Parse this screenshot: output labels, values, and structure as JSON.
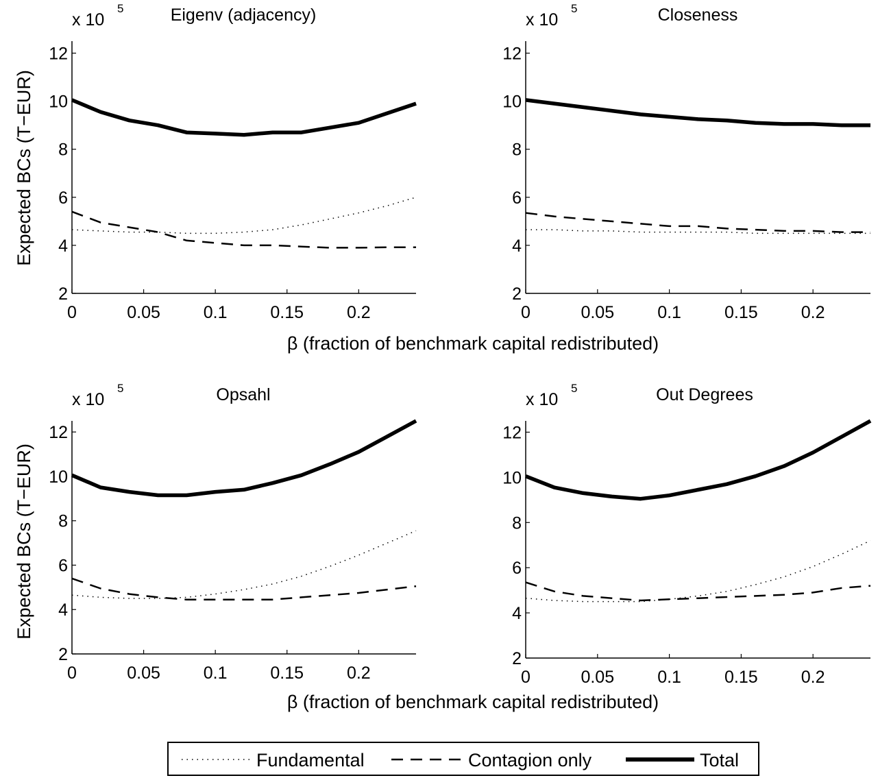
{
  "figure": {
    "ylabel": "Expected BCs (T−EUR)",
    "xlabel": "β (fraction of benchmark capital redistributed)",
    "exponent_base": "x 10",
    "exponent_power": "5"
  },
  "legend": {
    "fundamental": "Fundamental",
    "contagion": "Contagion only",
    "total": "Total"
  },
  "chart_data": [
    {
      "type": "line",
      "title": "Eigenv (adjacency)",
      "xlabel": "",
      "ylabel": "Expected BCs (T−EUR)",
      "xlim": [
        0,
        0.24
      ],
      "ylim": [
        2,
        12.5
      ],
      "xticks": [
        "0",
        "0.05",
        "0.1",
        "0.15",
        "0.2"
      ],
      "yticks": [
        "2",
        "4",
        "6",
        "8",
        "10",
        "12"
      ],
      "y_scale": "x 10^5",
      "x": [
        0,
        0.02,
        0.04,
        0.06,
        0.08,
        0.1,
        0.12,
        0.14,
        0.16,
        0.18,
        0.2,
        0.22,
        0.24
      ],
      "series": [
        {
          "name": "Fundamental",
          "values": [
            4.65,
            4.6,
            4.55,
            4.55,
            4.5,
            4.5,
            4.55,
            4.65,
            4.85,
            5.1,
            5.35,
            5.65,
            6.0
          ]
        },
        {
          "name": "Contagion only",
          "values": [
            5.4,
            4.95,
            4.75,
            4.55,
            4.2,
            4.1,
            4.0,
            4.0,
            3.95,
            3.9,
            3.9,
            3.92,
            3.92
          ]
        },
        {
          "name": "Total",
          "values": [
            10.05,
            9.55,
            9.2,
            9.0,
            8.7,
            8.65,
            8.6,
            8.7,
            8.7,
            8.9,
            9.1,
            9.5,
            9.9
          ]
        }
      ]
    },
    {
      "type": "line",
      "title": "Closeness",
      "xlabel": "β (fraction of benchmark capital redistributed)",
      "ylabel": "",
      "xlim": [
        0,
        0.24
      ],
      "ylim": [
        2,
        12.5
      ],
      "xticks": [
        "0",
        "0.05",
        "0.1",
        "0.15",
        "0.2"
      ],
      "yticks": [
        "2",
        "4",
        "6",
        "8",
        "10",
        "12"
      ],
      "y_scale": "x 10^5",
      "x": [
        0,
        0.02,
        0.04,
        0.06,
        0.08,
        0.1,
        0.12,
        0.14,
        0.16,
        0.18,
        0.2,
        0.22,
        0.24
      ],
      "series": [
        {
          "name": "Fundamental",
          "values": [
            4.65,
            4.65,
            4.6,
            4.6,
            4.55,
            4.55,
            4.55,
            4.55,
            4.5,
            4.5,
            4.5,
            4.5,
            4.5
          ]
        },
        {
          "name": "Contagion only",
          "values": [
            5.35,
            5.2,
            5.1,
            5.0,
            4.9,
            4.8,
            4.8,
            4.7,
            4.65,
            4.6,
            4.6,
            4.55,
            4.55
          ]
        },
        {
          "name": "Total",
          "values": [
            10.05,
            9.9,
            9.75,
            9.6,
            9.45,
            9.35,
            9.25,
            9.2,
            9.1,
            9.05,
            9.05,
            9.0,
            9.0
          ]
        }
      ]
    },
    {
      "type": "line",
      "title": "Opsahl",
      "xlabel": "",
      "ylabel": "Expected BCs (T−EUR)",
      "xlim": [
        0,
        0.24
      ],
      "ylim": [
        2,
        12.5
      ],
      "xticks": [
        "0",
        "0.05",
        "0.1",
        "0.15",
        "0.2"
      ],
      "yticks": [
        "2",
        "4",
        "6",
        "8",
        "10",
        "12"
      ],
      "y_scale": "x 10^5",
      "x": [
        0,
        0.02,
        0.04,
        0.06,
        0.08,
        0.1,
        0.12,
        0.14,
        0.16,
        0.18,
        0.2,
        0.22,
        0.24
      ],
      "series": [
        {
          "name": "Fundamental",
          "values": [
            4.65,
            4.55,
            4.5,
            4.5,
            4.55,
            4.7,
            4.9,
            5.15,
            5.5,
            5.95,
            6.45,
            7.0,
            7.55
          ]
        },
        {
          "name": "Contagion only",
          "values": [
            5.4,
            4.95,
            4.7,
            4.55,
            4.45,
            4.45,
            4.45,
            4.45,
            4.55,
            4.65,
            4.75,
            4.9,
            5.05
          ]
        },
        {
          "name": "Total",
          "values": [
            10.05,
            9.5,
            9.3,
            9.15,
            9.15,
            9.3,
            9.4,
            9.7,
            10.05,
            10.55,
            11.1,
            11.8,
            12.5
          ]
        }
      ]
    },
    {
      "type": "line",
      "title": "Out Degrees",
      "xlabel": "β (fraction of benchmark capital redistributed)",
      "ylabel": "",
      "xlim": [
        0,
        0.24
      ],
      "ylim": [
        2,
        12.5
      ],
      "xticks": [
        "0",
        "0.05",
        "0.1",
        "0.15",
        "0.2"
      ],
      "yticks": [
        "2",
        "4",
        "6",
        "8",
        "10",
        "12"
      ],
      "y_scale": "x 10^5",
      "x": [
        0,
        0.02,
        0.04,
        0.06,
        0.08,
        0.1,
        0.12,
        0.14,
        0.16,
        0.18,
        0.2,
        0.22,
        0.24
      ],
      "series": [
        {
          "name": "Fundamental",
          "values": [
            4.65,
            4.55,
            4.5,
            4.5,
            4.5,
            4.6,
            4.75,
            4.95,
            5.25,
            5.6,
            6.05,
            6.6,
            7.2
          ]
        },
        {
          "name": "Contagion only",
          "values": [
            5.35,
            4.95,
            4.75,
            4.65,
            4.55,
            4.6,
            4.65,
            4.7,
            4.75,
            4.8,
            4.9,
            5.1,
            5.2
          ]
        },
        {
          "name": "Total",
          "values": [
            10.05,
            9.55,
            9.3,
            9.15,
            9.05,
            9.2,
            9.45,
            9.7,
            10.05,
            10.5,
            11.1,
            11.8,
            12.5
          ]
        }
      ]
    }
  ]
}
